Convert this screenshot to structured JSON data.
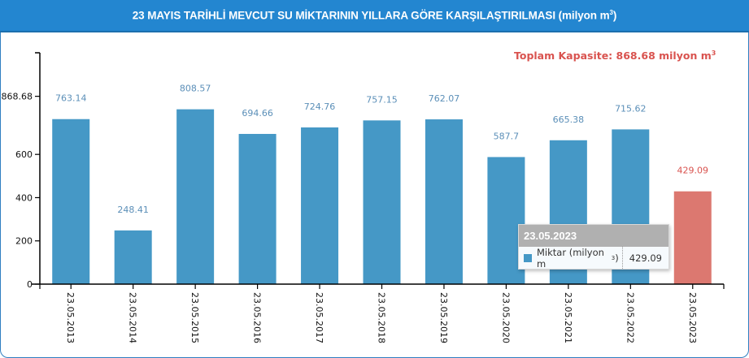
{
  "header": {
    "title": "23 MAYIS TARİHLİ MEVCUT SU MİKTARININ YILLARA GÖRE KARŞILAŞTIRILMASI (milyon m",
    "title_sup": "3",
    "title_close": ")"
  },
  "capacity": {
    "label": "Toplam Kapasite: 868.68 milyon m",
    "sup": "3"
  },
  "tooltip": {
    "title": "23.05.2023",
    "series_name": "Miktar (milyon m",
    "series_sup": "3",
    "series_close": ")",
    "value": "429.09"
  },
  "colors": {
    "header_bg": "#2386d0",
    "bar": "#4598c6",
    "bar_highlight": "#dc7870",
    "bar_label": "#5b8fb8",
    "capacity_text": "#d9534f"
  },
  "chart_data": {
    "type": "bar",
    "title": "23 MAYIS TARİHLİ MEVCUT SU MİKTARININ YILLARA GÖRE KARŞILAŞTIRILMASI (milyon m³)",
    "xlabel": "",
    "ylabel": "",
    "categories": [
      "23.05.2013",
      "23.05.2014",
      "23.05.2015",
      "23.05.2016",
      "23.05.2017",
      "23.05.2018",
      "23.05.2019",
      "23.05.2020",
      "23.05.2021",
      "23.05.2022",
      "23.05.2023"
    ],
    "series": [
      {
        "name": "Miktar (milyon m³)",
        "values": [
          763.14,
          248.41,
          808.57,
          694.66,
          724.76,
          757.15,
          762.07,
          587.7,
          665.38,
          715.62,
          429.09
        ]
      }
    ],
    "value_labels": [
      "763.14",
      "248.41",
      "808.57",
      "694.66",
      "724.76",
      "757.15",
      "762.07",
      "587.7",
      "665.38",
      "715.62",
      "429.09"
    ],
    "highlighted_index": 10,
    "y_ticks": [
      0,
      200,
      400,
      600,
      868.68
    ],
    "y_tick_labels": [
      "0",
      "200",
      "400",
      "600",
      "868.68"
    ],
    "ylim": [
      0,
      1070
    ],
    "annotation": "Toplam Kapasite: 868.68 milyon m³",
    "grid": false,
    "legend": "none"
  }
}
